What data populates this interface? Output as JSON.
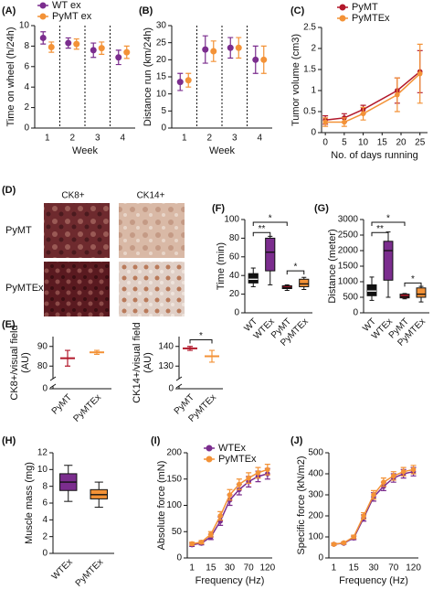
{
  "chart_data": [
    {
      "label": "(A)",
      "type": "errorbar",
      "marker": "circle",
      "separators": true,
      "ylabel": [
        "Time on wheel (h/24h)"
      ],
      "xlabel": "Week",
      "categories": [
        "1",
        "2",
        "3",
        "4"
      ],
      "ylim": [
        0,
        10
      ],
      "yticks": [
        0,
        2,
        4,
        6,
        8,
        10
      ],
      "legend": "top",
      "series": [
        {
          "name": "WT ex",
          "color": "#7b2d8e",
          "values": [
            8.8,
            8.3,
            7.6,
            6.9
          ],
          "errors": [
            0.6,
            0.5,
            0.7,
            0.7
          ]
        },
        {
          "name": "PyMT ex",
          "color": "#f39237",
          "values": [
            7.9,
            8.2,
            7.8,
            7.4
          ],
          "errors": [
            0.5,
            0.5,
            0.6,
            0.6
          ]
        }
      ]
    },
    {
      "label": "(B)",
      "type": "errorbar",
      "marker": "circle",
      "separators": true,
      "ylabel": [
        "Distance run (km/24h)"
      ],
      "xlabel": "Week",
      "categories": [
        "1",
        "2",
        "3",
        "4"
      ],
      "ylim": [
        0,
        30
      ],
      "yticks": [
        0,
        5,
        10,
        15,
        20,
        25,
        30
      ],
      "series": [
        {
          "color": "#7b2d8e",
          "values": [
            13.5,
            23,
            23.5,
            20
          ],
          "errors": [
            2.5,
            4,
            3,
            4
          ]
        },
        {
          "color": "#f39237",
          "values": [
            14,
            22.5,
            23.5,
            20
          ],
          "errors": [
            2,
            3,
            3,
            4
          ]
        }
      ]
    },
    {
      "label": "(C)",
      "type": "line",
      "ylabel": [
        "Tumor volume (cm3)"
      ],
      "xlabel": "No. of days running",
      "x": [
        0,
        5,
        10,
        19,
        25
      ],
      "xlim": [
        -1,
        27
      ],
      "xticks": [
        0,
        5,
        10,
        15,
        20,
        25
      ],
      "ylim": [
        0,
        2.5
      ],
      "yticks": [
        0,
        0.5,
        1,
        1.5,
        2,
        2.5
      ],
      "legend": "top-left",
      "series": [
        {
          "name": "PyMT",
          "color": "#b2182b",
          "values": [
            0.3,
            0.35,
            0.55,
            1.0,
            1.45
          ],
          "errors": [
            0.1,
            0.1,
            0.1,
            0.3,
            0.5
          ]
        },
        {
          "name": "PyMTEx",
          "color": "#f39237",
          "values": [
            0.25,
            0.25,
            0.45,
            0.9,
            1.4
          ],
          "errors": [
            0.1,
            0.1,
            0.15,
            0.4,
            0.7
          ]
        }
      ]
    },
    {
      "label": "(E)",
      "type": "errorbar",
      "marker": "dash",
      "axis_break": true,
      "ylabel": [
        "CK8+/visual field",
        "(AU)"
      ],
      "categories": [
        "PyMT",
        "PyMTEx"
      ],
      "ylim": [
        75,
        95
      ],
      "yticks": [
        0,
        80,
        90
      ],
      "colors": [
        "#b2182b",
        "#f39237"
      ],
      "values": [
        84,
        87
      ],
      "errors": [
        4,
        1
      ]
    },
    {
      "type": "errorbar",
      "marker": "dash",
      "axis_break": true,
      "ylabel": [
        "CK14+/visual field",
        "(AU)"
      ],
      "categories": [
        "PyMT",
        "PyMTEx"
      ],
      "ylim": [
        125,
        145
      ],
      "yticks": [
        0,
        130,
        140
      ],
      "colors": [
        "#b2182b",
        "#f39237"
      ],
      "values": [
        139,
        135
      ],
      "errors": [
        1,
        3
      ],
      "annotations": [
        "*"
      ]
    },
    {
      "label": "(F)",
      "type": "box",
      "ylabel": [
        "Time (min)"
      ],
      "categories": [
        "WT",
        "WTEx",
        "PyMT",
        "PyMTEx"
      ],
      "ylim": [
        0,
        100
      ],
      "yticks": [
        0,
        20,
        40,
        60,
        80,
        100
      ],
      "colors": [
        "#111111",
        "#7b2d8e",
        "#b2182b",
        "#f39237"
      ],
      "boxes": [
        {
          "min": 28,
          "q1": 32,
          "median": 36,
          "q3": 42,
          "max": 48
        },
        {
          "min": 30,
          "q1": 45,
          "median": 65,
          "q3": 80,
          "max": 82
        },
        {
          "min": 24,
          "q1": 26,
          "median": 27,
          "q3": 29,
          "max": 30
        },
        {
          "min": 25,
          "q1": 28,
          "median": 31,
          "q3": 36,
          "max": 38
        }
      ],
      "annotations": [
        "**",
        "*",
        "*"
      ]
    },
    {
      "label": "(G)",
      "type": "box",
      "ylabel": [
        "Distance (meter)"
      ],
      "categories": [
        "WT",
        "WTEx",
        "PyMT",
        "PyMTEx"
      ],
      "ylim": [
        0,
        3000
      ],
      "yticks": [
        0,
        500,
        1000,
        1500,
        2000,
        2500,
        3000
      ],
      "colors": [
        "#111111",
        "#7b2d8e",
        "#b2182b",
        "#f39237"
      ],
      "boxes": [
        {
          "min": 400,
          "q1": 550,
          "median": 700,
          "q3": 900,
          "max": 1150
        },
        {
          "min": 500,
          "q1": 1050,
          "median": 2000,
          "q3": 2300,
          "max": 2600
        },
        {
          "min": 450,
          "q1": 480,
          "median": 520,
          "q3": 600,
          "max": 620
        },
        {
          "min": 350,
          "q1": 500,
          "median": 600,
          "q3": 800,
          "max": 850
        }
      ],
      "annotations": [
        "**",
        "*",
        "*"
      ]
    },
    {
      "label": "(H)",
      "type": "box",
      "ylabel": [
        "Muscle mass (mg)"
      ],
      "categories": [
        "WTEx",
        "PyMTEx"
      ],
      "ylim": [
        0,
        12
      ],
      "yticks": [
        0,
        2,
        4,
        6,
        8,
        10,
        12
      ],
      "colors": [
        "#7b2d8e",
        "#f39237"
      ],
      "boxes": [
        {
          "min": 6.2,
          "q1": 7.5,
          "median": 8.5,
          "q3": 9.5,
          "max": 10.5
        },
        {
          "min": 5.5,
          "q1": 6.5,
          "median": 7.0,
          "q3": 7.6,
          "max": 8.5
        }
      ]
    },
    {
      "label": "(I)",
      "type": "line",
      "ylabel": [
        "Absolute force (mN)"
      ],
      "xlabel": "Frequency (Hz)",
      "categories": [
        "1",
        null,
        "15",
        null,
        "30",
        null,
        "70",
        null,
        "120"
      ],
      "ylim": [
        0,
        200
      ],
      "yticks": [
        0,
        50,
        100,
        150,
        200
      ],
      "legend": "top-left",
      "series": [
        {
          "name": "WTEx",
          "color": "#7b2d8e",
          "values": [
            25,
            28,
            40,
            70,
            110,
            130,
            145,
            155,
            160
          ],
          "errors": [
            3,
            3,
            5,
            8,
            10,
            10,
            10,
            10,
            10
          ]
        },
        {
          "name": "PyMTEx",
          "color": "#f39237",
          "values": [
            27,
            30,
            45,
            80,
            120,
            140,
            152,
            162,
            168
          ],
          "errors": [
            3,
            3,
            5,
            8,
            10,
            10,
            10,
            10,
            10
          ]
        }
      ]
    },
    {
      "label": "(J)",
      "type": "line",
      "ylabel": [
        "Specific force (kN/m2)"
      ],
      "xlabel": "Frequency (Hz)",
      "categories": [
        "1",
        null,
        "15",
        null,
        "30",
        null,
        "70",
        null,
        "120"
      ],
      "ylim": [
        0,
        500
      ],
      "yticks": [
        0,
        100,
        200,
        300,
        400,
        500
      ],
      "series": [
        {
          "color": "#7b2d8e",
          "values": [
            65,
            70,
            95,
            190,
            290,
            340,
            380,
            400,
            410
          ],
          "errors": [
            5,
            5,
            8,
            15,
            20,
            20,
            20,
            20,
            20
          ]
        },
        {
          "color": "#f39237",
          "values": [
            65,
            72,
            100,
            200,
            300,
            360,
            390,
            410,
            420
          ],
          "errors": [
            5,
            5,
            8,
            15,
            20,
            20,
            20,
            20,
            20
          ]
        }
      ]
    }
  ],
  "image_panel": {
    "label": "(D)",
    "columns": [
      "CK8+",
      "CK14+"
    ],
    "rows": [
      "PyMT",
      "PyMTEx"
    ]
  }
}
